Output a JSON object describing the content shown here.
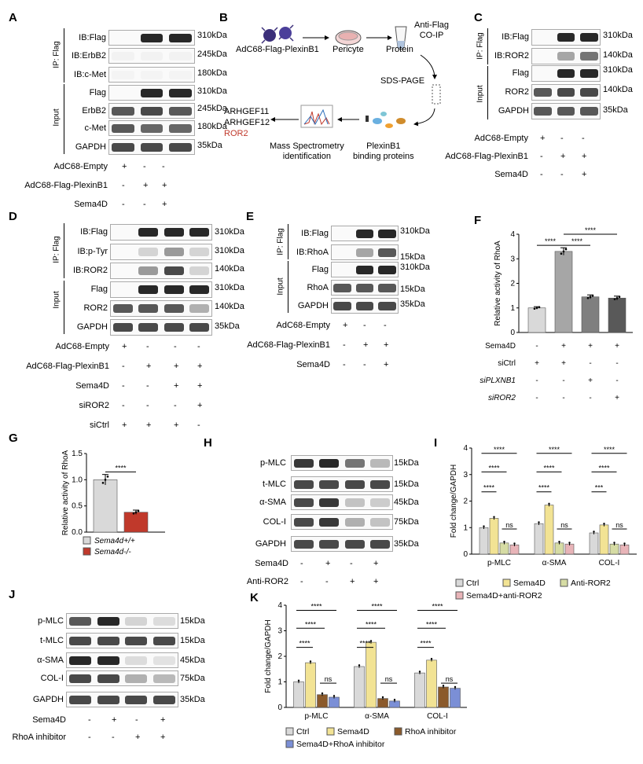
{
  "panel_letters": [
    "A",
    "B",
    "C",
    "D",
    "E",
    "F",
    "G",
    "H",
    "I",
    "J",
    "K"
  ],
  "common": {
    "ip_flag": "IP: Flag",
    "input": "Input",
    "plus": "+",
    "minus": "-",
    "mw_310": "310kDa",
    "mw_245": "245kDa",
    "mw_180": "180kDa",
    "mw_140": "140kDa",
    "mw_35": "35kDa",
    "mw_15": "15kDa",
    "mw_45": "45kDa",
    "mw_75": "75kDa"
  },
  "panelA": {
    "ip_blots": [
      "IB:Flag",
      "IB:ErbB2",
      "IB:c-Met"
    ],
    "input_blots": [
      "Flag",
      "ErbB2",
      "c-Met",
      "GAPDH"
    ],
    "conditions": [
      {
        "label": "AdC68-Empty",
        "signs": [
          "+",
          "-",
          "-"
        ]
      },
      {
        "label": "AdC68-Flag-PlexinB1",
        "signs": [
          "-",
          "+",
          "+"
        ]
      },
      {
        "label": "Sema4D",
        "signs": [
          "-",
          "-",
          "+"
        ]
      }
    ]
  },
  "panelB": {
    "virus": "AdC68-Flag-PlexinB1",
    "cell": "Pericyte",
    "protein": "Protein",
    "coip": "Anti-Flag\nCO-IP",
    "sds": "SDS-PAGE",
    "binding": "PlexinB1\nbinding proteins",
    "ms": "Mass Spectrometry\nidentification",
    "hits": [
      "ARHGEF11",
      "ARHGEF12",
      "ROR2"
    ],
    "highlight_color": "#c0392b"
  },
  "panelC": {
    "ip_blots": [
      "IB:Flag",
      "IB:ROR2"
    ],
    "input_blots": [
      "Flag",
      "ROR2",
      "GAPDH"
    ],
    "conditions": [
      {
        "label": "AdC68-Empty",
        "signs": [
          "+",
          "-",
          "-"
        ]
      },
      {
        "label": "AdC68-Flag-PlexinB1",
        "signs": [
          "-",
          "+",
          "+"
        ]
      },
      {
        "label": "Sema4D",
        "signs": [
          "-",
          "-",
          "+"
        ]
      }
    ]
  },
  "panelD": {
    "ip_blots": [
      "IB:Flag",
      "IB:p-Tyr",
      "IB:ROR2"
    ],
    "input_blots": [
      "Flag",
      "ROR2",
      "GAPDH"
    ],
    "conditions": [
      {
        "label": "AdC68-Empty",
        "signs": [
          "+",
          "-",
          "-",
          "-"
        ]
      },
      {
        "label": "AdC68-Flag-PlexinB1",
        "signs": [
          "-",
          "+",
          "+",
          "+"
        ]
      },
      {
        "label": "Sema4D",
        "signs": [
          "-",
          "-",
          "+",
          "+"
        ]
      },
      {
        "label": "siROR2",
        "signs": [
          "-",
          "-",
          "-",
          "+"
        ]
      },
      {
        "label": "siCtrl",
        "signs": [
          "+",
          "+",
          "+",
          "-"
        ]
      }
    ]
  },
  "panelE": {
    "ip_blots": [
      "IB:Flag",
      "IB:RhoA"
    ],
    "input_blots": [
      "Flag",
      "RhoA",
      "GAPDH"
    ],
    "conditions": [
      {
        "label": "AdC68-Empty",
        "signs": [
          "+",
          "-",
          "-"
        ]
      },
      {
        "label": "AdC68-Flag-PlexinB1",
        "signs": [
          "-",
          "+",
          "+"
        ]
      },
      {
        "label": "Sema4D",
        "signs": [
          "-",
          "-",
          "+"
        ]
      }
    ]
  },
  "panelH": {
    "blots": [
      "p-MLC",
      "t-MLC",
      "α-SMA",
      "COL-I",
      "GAPDH"
    ],
    "mw": [
      "15kDa",
      "15kDa",
      "45kDa",
      "75kDa",
      "35kDa"
    ],
    "conditions": [
      {
        "label": "Sema4D",
        "signs": [
          "-",
          "+",
          "-",
          "+"
        ]
      },
      {
        "label": "Anti-ROR2",
        "signs": [
          "-",
          "-",
          "+",
          "+"
        ]
      }
    ]
  },
  "panelJ": {
    "blots": [
      "p-MLC",
      "t-MLC",
      "α-SMA",
      "COL-I",
      "GAPDH"
    ],
    "mw": [
      "15kDa",
      "15kDa",
      "45kDa",
      "75kDa",
      "35kDa"
    ],
    "conditions": [
      {
        "label": "Sema4D",
        "signs": [
          "-",
          "+",
          "-",
          "+"
        ]
      },
      {
        "label": "RhoA inhibitor",
        "signs": [
          "-",
          "-",
          "+",
          "+"
        ]
      }
    ]
  },
  "chart_data": [
    {
      "panel": "F",
      "type": "bar",
      "ylabel": "Relative activity of RhoA",
      "ylim": [
        0,
        4
      ],
      "yticks": [
        0,
        1,
        2,
        3,
        4
      ],
      "values": [
        1.0,
        3.3,
        1.45,
        1.4
      ],
      "errors": [
        0.05,
        0.15,
        0.08,
        0.08
      ],
      "colors": [
        "#d9d9d9",
        "#a6a6a6",
        "#7f7f7f",
        "#595959"
      ],
      "significance": [
        {
          "from": 0,
          "to": 1,
          "label": "****"
        },
        {
          "from": 1,
          "to": 2,
          "label": "****"
        },
        {
          "from": 1,
          "to": 3,
          "label": "****"
        }
      ],
      "conditions": [
        {
          "label": "Sema4D",
          "signs": [
            "-",
            "+",
            "+",
            "+"
          ]
        },
        {
          "label": "siCtrl",
          "signs": [
            "+",
            "+",
            "-",
            "-"
          ]
        },
        {
          "label": "siPLXNB1",
          "signs": [
            "-",
            "-",
            "+",
            "-"
          ]
        },
        {
          "label": "siROR2",
          "signs": [
            "-",
            "-",
            "-",
            "+"
          ]
        }
      ]
    },
    {
      "panel": "G",
      "type": "bar",
      "ylabel": "Relative activity of RhoA",
      "ylim": [
        0,
        1.5
      ],
      "yticks": [
        0.0,
        0.5,
        1.0,
        1.5
      ],
      "categories": [
        "Sema4d+/+",
        "Sema4d-/-"
      ],
      "values": [
        1.0,
        0.38
      ],
      "errors": [
        0.1,
        0.04
      ],
      "colors": [
        "#d9d9d9",
        "#c0392b"
      ],
      "significance": [
        {
          "from": 0,
          "to": 1,
          "label": "****"
        }
      ]
    },
    {
      "panel": "I",
      "type": "bar",
      "ylabel": "Fold change/GAPDH",
      "ylim": [
        0,
        4
      ],
      "yticks": [
        0,
        1,
        2,
        3,
        4
      ],
      "categories": [
        "p-MLC",
        "α-SMA",
        "COL-I"
      ],
      "series": [
        {
          "name": "Ctrl",
          "values": [
            1.0,
            1.15,
            0.8
          ],
          "color": "#d9d9d9"
        },
        {
          "name": "Sema4D",
          "values": [
            1.35,
            1.85,
            1.1
          ],
          "color": "#f2e394"
        },
        {
          "name": "Anti-ROR2",
          "values": [
            0.42,
            0.42,
            0.38
          ],
          "color": "#d6dca4"
        },
        {
          "name": "Sema4D+anti-ROR2",
          "values": [
            0.35,
            0.38,
            0.35
          ],
          "color": "#e8b4b8"
        }
      ],
      "significance": [
        [
          "****",
          "****",
          "****",
          "ns"
        ],
        [
          "****",
          "****",
          "****",
          "ns"
        ],
        [
          "****",
          "****",
          "***",
          "ns"
        ]
      ]
    },
    {
      "panel": "K",
      "type": "bar",
      "ylabel": "Fold change/GAPDH",
      "ylim": [
        0,
        4
      ],
      "yticks": [
        0,
        1,
        2,
        3,
        4
      ],
      "categories": [
        "p-MLC",
        "α-SMA",
        "COL-I"
      ],
      "series": [
        {
          "name": "Ctrl",
          "values": [
            1.0,
            1.6,
            1.35
          ],
          "color": "#d9d9d9"
        },
        {
          "name": "Sema4D",
          "values": [
            1.75,
            2.55,
            1.85
          ],
          "color": "#f2e394"
        },
        {
          "name": "RhoA inhibitor",
          "values": [
            0.5,
            0.35,
            0.8
          ],
          "color": "#8b5a2b"
        },
        {
          "name": "Sema4D+RhoA inhibitor",
          "values": [
            0.4,
            0.25,
            0.75
          ],
          "color": "#7b8fd6"
        }
      ],
      "significance": [
        [
          "****",
          "****",
          "****",
          "ns"
        ],
        [
          "****",
          "****",
          "****",
          "ns"
        ],
        [
          "****",
          "****",
          "****",
          "ns"
        ]
      ]
    }
  ]
}
